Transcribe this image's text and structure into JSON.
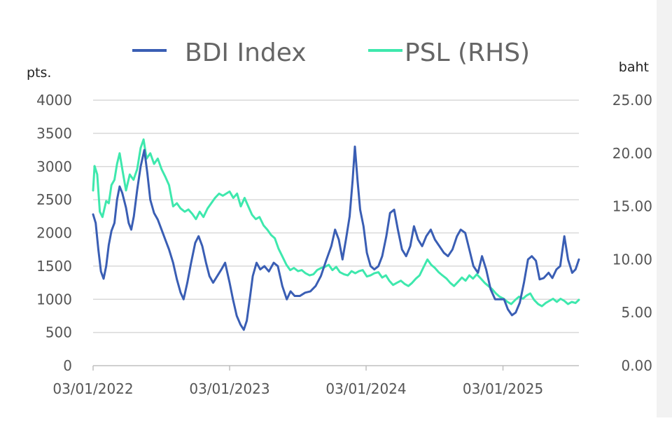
{
  "chart_data": {
    "type": "line",
    "x_ticks": [
      "03/01/2022",
      "03/01/2023",
      "03/01/2024",
      "03/01/2025"
    ],
    "x_range": [
      "2022-01-03",
      "2025-07-25"
    ],
    "left_axis": {
      "unit": "pts.",
      "ylim": [
        0,
        4000
      ],
      "ticks": [
        "0",
        "500",
        "1000",
        "1500",
        "2000",
        "2500",
        "3000",
        "3500",
        "4000"
      ]
    },
    "right_axis": {
      "unit": "baht",
      "ylim": [
        0,
        25
      ],
      "ticks": [
        "0.00",
        "5.00",
        "10.00",
        "15.00",
        "20.00",
        "25.00"
      ]
    },
    "grid": "horizontal",
    "legend_position": "top",
    "series": [
      {
        "name": "BDI Index",
        "axis": "left",
        "color": "#3a5eb4",
        "points": [
          [
            "2022-01-03",
            2280
          ],
          [
            "2022-01-10",
            2150
          ],
          [
            "2022-01-17",
            1750
          ],
          [
            "2022-01-24",
            1420
          ],
          [
            "2022-01-31",
            1310
          ],
          [
            "2022-02-07",
            1500
          ],
          [
            "2022-02-14",
            1820
          ],
          [
            "2022-02-21",
            2030
          ],
          [
            "2022-03-01",
            2150
          ],
          [
            "2022-03-08",
            2500
          ],
          [
            "2022-03-15",
            2700
          ],
          [
            "2022-03-22",
            2600
          ],
          [
            "2022-04-01",
            2380
          ],
          [
            "2022-04-08",
            2150
          ],
          [
            "2022-04-15",
            2050
          ],
          [
            "2022-04-22",
            2250
          ],
          [
            "2022-05-01",
            2650
          ],
          [
            "2022-05-10",
            3000
          ],
          [
            "2022-05-20",
            3250
          ],
          [
            "2022-05-28",
            2900
          ],
          [
            "2022-06-05",
            2500
          ],
          [
            "2022-06-15",
            2300
          ],
          [
            "2022-06-25",
            2200
          ],
          [
            "2022-07-05",
            2050
          ],
          [
            "2022-07-15",
            1900
          ],
          [
            "2022-07-25",
            1750
          ],
          [
            "2022-08-05",
            1550
          ],
          [
            "2022-08-15",
            1300
          ],
          [
            "2022-08-25",
            1100
          ],
          [
            "2022-09-02",
            1000
          ],
          [
            "2022-09-12",
            1250
          ],
          [
            "2022-09-22",
            1550
          ],
          [
            "2022-10-03",
            1850
          ],
          [
            "2022-10-12",
            1950
          ],
          [
            "2022-10-22",
            1800
          ],
          [
            "2022-11-01",
            1550
          ],
          [
            "2022-11-10",
            1350
          ],
          [
            "2022-11-20",
            1250
          ],
          [
            "2022-12-01",
            1350
          ],
          [
            "2022-12-12",
            1450
          ],
          [
            "2022-12-22",
            1550
          ],
          [
            "2023-01-03",
            1250
          ],
          [
            "2023-01-12",
            1000
          ],
          [
            "2023-01-22",
            750
          ],
          [
            "2023-02-01",
            620
          ],
          [
            "2023-02-10",
            540
          ],
          [
            "2023-02-18",
            680
          ],
          [
            "2023-02-27",
            1050
          ],
          [
            "2023-03-06",
            1350
          ],
          [
            "2023-03-16",
            1550
          ],
          [
            "2023-03-26",
            1450
          ],
          [
            "2023-04-06",
            1500
          ],
          [
            "2023-04-18",
            1420
          ],
          [
            "2023-05-01",
            1550
          ],
          [
            "2023-05-12",
            1500
          ],
          [
            "2023-05-24",
            1200
          ],
          [
            "2023-06-05",
            1000
          ],
          [
            "2023-06-15",
            1120
          ],
          [
            "2023-06-26",
            1050
          ],
          [
            "2023-07-10",
            1050
          ],
          [
            "2023-07-24",
            1100
          ],
          [
            "2023-08-07",
            1120
          ],
          [
            "2023-08-21",
            1200
          ],
          [
            "2023-09-04",
            1350
          ],
          [
            "2023-09-18",
            1580
          ],
          [
            "2023-10-02",
            1800
          ],
          [
            "2023-10-12",
            2050
          ],
          [
            "2023-10-22",
            1900
          ],
          [
            "2023-11-01",
            1600
          ],
          [
            "2023-11-10",
            1900
          ],
          [
            "2023-11-20",
            2250
          ],
          [
            "2023-11-28",
            2800
          ],
          [
            "2023-12-04",
            3300
          ],
          [
            "2023-12-11",
            2800
          ],
          [
            "2023-12-18",
            2350
          ],
          [
            "2023-12-27",
            2100
          ],
          [
            "2024-01-05",
            1700
          ],
          [
            "2024-01-15",
            1500
          ],
          [
            "2024-01-25",
            1450
          ],
          [
            "2024-02-05",
            1500
          ],
          [
            "2024-02-15",
            1650
          ],
          [
            "2024-02-26",
            1950
          ],
          [
            "2024-03-07",
            2300
          ],
          [
            "2024-03-18",
            2350
          ],
          [
            "2024-03-28",
            2050
          ],
          [
            "2024-04-08",
            1750
          ],
          [
            "2024-04-19",
            1650
          ],
          [
            "2024-04-30",
            1800
          ],
          [
            "2024-05-10",
            2100
          ],
          [
            "2024-05-21",
            1900
          ],
          [
            "2024-06-01",
            1800
          ],
          [
            "2024-06-12",
            1950
          ],
          [
            "2024-06-24",
            2050
          ],
          [
            "2024-07-05",
            1900
          ],
          [
            "2024-07-17",
            1800
          ],
          [
            "2024-07-29",
            1700
          ],
          [
            "2024-08-09",
            1650
          ],
          [
            "2024-08-21",
            1750
          ],
          [
            "2024-09-02",
            1950
          ],
          [
            "2024-09-12",
            2050
          ],
          [
            "2024-09-24",
            2000
          ],
          [
            "2024-10-05",
            1750
          ],
          [
            "2024-10-16",
            1500
          ],
          [
            "2024-10-28",
            1400
          ],
          [
            "2024-11-08",
            1650
          ],
          [
            "2024-11-19",
            1450
          ],
          [
            "2024-12-01",
            1150
          ],
          [
            "2024-12-13",
            1000
          ],
          [
            "2024-12-25",
            1000
          ],
          [
            "2025-01-06",
            1000
          ],
          [
            "2025-01-16",
            850
          ],
          [
            "2025-01-27",
            760
          ],
          [
            "2025-02-06",
            800
          ],
          [
            "2025-02-17",
            950
          ],
          [
            "2025-02-28",
            1250
          ],
          [
            "2025-03-11",
            1600
          ],
          [
            "2025-03-21",
            1650
          ],
          [
            "2025-04-01",
            1580
          ],
          [
            "2025-04-11",
            1300
          ],
          [
            "2025-04-22",
            1320
          ],
          [
            "2025-05-05",
            1400
          ],
          [
            "2025-05-15",
            1320
          ],
          [
            "2025-05-26",
            1450
          ],
          [
            "2025-06-05",
            1500
          ],
          [
            "2025-06-16",
            1950
          ],
          [
            "2025-06-26",
            1600
          ],
          [
            "2025-07-07",
            1400
          ],
          [
            "2025-07-16",
            1450
          ],
          [
            "2025-07-25",
            1600
          ]
        ]
      },
      {
        "name": "PSL (RHS)",
        "axis": "right",
        "color": "#3ee8ad",
        "points": [
          [
            "2022-01-03",
            16.5
          ],
          [
            "2022-01-07",
            18.8
          ],
          [
            "2022-01-14",
            18.0
          ],
          [
            "2022-01-21",
            14.5
          ],
          [
            "2022-01-28",
            14.0
          ],
          [
            "2022-02-07",
            15.5
          ],
          [
            "2022-02-14",
            15.3
          ],
          [
            "2022-02-21",
            17.0
          ],
          [
            "2022-03-01",
            17.5
          ],
          [
            "2022-03-08",
            19.0
          ],
          [
            "2022-03-15",
            20.0
          ],
          [
            "2022-03-22",
            18.5
          ],
          [
            "2022-04-01",
            16.5
          ],
          [
            "2022-04-11",
            18.0
          ],
          [
            "2022-04-21",
            17.5
          ],
          [
            "2022-05-01",
            18.5
          ],
          [
            "2022-05-10",
            20.5
          ],
          [
            "2022-05-18",
            21.3
          ],
          [
            "2022-05-26",
            19.5
          ],
          [
            "2022-06-05",
            20.0
          ],
          [
            "2022-06-15",
            19.0
          ],
          [
            "2022-06-25",
            19.5
          ],
          [
            "2022-07-05",
            18.5
          ],
          [
            "2022-07-15",
            17.8
          ],
          [
            "2022-07-25",
            17.0
          ],
          [
            "2022-08-05",
            15.0
          ],
          [
            "2022-08-15",
            15.3
          ],
          [
            "2022-08-25",
            14.8
          ],
          [
            "2022-09-05",
            14.5
          ],
          [
            "2022-09-15",
            14.7
          ],
          [
            "2022-09-25",
            14.3
          ],
          [
            "2022-10-05",
            13.8
          ],
          [
            "2022-10-15",
            14.5
          ],
          [
            "2022-10-25",
            14.0
          ],
          [
            "2022-11-05",
            14.8
          ],
          [
            "2022-11-15",
            15.3
          ],
          [
            "2022-11-25",
            15.8
          ],
          [
            "2022-12-06",
            16.2
          ],
          [
            "2022-12-16",
            16.0
          ],
          [
            "2023-01-03",
            16.4
          ],
          [
            "2023-01-13",
            15.8
          ],
          [
            "2023-01-23",
            16.2
          ],
          [
            "2023-02-02",
            15.0
          ],
          [
            "2023-02-12",
            15.8
          ],
          [
            "2023-02-22",
            15.0
          ],
          [
            "2023-03-04",
            14.2
          ],
          [
            "2023-03-14",
            13.8
          ],
          [
            "2023-03-24",
            14.0
          ],
          [
            "2023-04-04",
            13.2
          ],
          [
            "2023-04-14",
            12.8
          ],
          [
            "2023-04-24",
            12.3
          ],
          [
            "2023-05-04",
            12.0
          ],
          [
            "2023-05-14",
            11.0
          ],
          [
            "2023-05-24",
            10.3
          ],
          [
            "2023-06-04",
            9.5
          ],
          [
            "2023-06-14",
            9.0
          ],
          [
            "2023-06-24",
            9.2
          ],
          [
            "2023-07-05",
            8.9
          ],
          [
            "2023-07-15",
            9.0
          ],
          [
            "2023-07-25",
            8.7
          ],
          [
            "2023-08-05",
            8.5
          ],
          [
            "2023-08-15",
            8.6
          ],
          [
            "2023-08-25",
            9.0
          ],
          [
            "2023-09-05",
            9.2
          ],
          [
            "2023-09-15",
            9.3
          ],
          [
            "2023-09-25",
            9.5
          ],
          [
            "2023-10-05",
            9.0
          ],
          [
            "2023-10-15",
            9.3
          ],
          [
            "2023-10-25",
            8.8
          ],
          [
            "2023-11-05",
            8.6
          ],
          [
            "2023-11-15",
            8.5
          ],
          [
            "2023-11-25",
            8.9
          ],
          [
            "2023-12-05",
            8.7
          ],
          [
            "2023-12-15",
            8.9
          ],
          [
            "2023-12-25",
            9.0
          ],
          [
            "2024-01-05",
            8.4
          ],
          [
            "2024-01-15",
            8.5
          ],
          [
            "2024-01-25",
            8.7
          ],
          [
            "2024-02-05",
            8.8
          ],
          [
            "2024-02-15",
            8.3
          ],
          [
            "2024-02-25",
            8.5
          ],
          [
            "2024-03-05",
            8.0
          ],
          [
            "2024-03-15",
            7.6
          ],
          [
            "2024-03-25",
            7.8
          ],
          [
            "2024-04-05",
            8.0
          ],
          [
            "2024-04-15",
            7.7
          ],
          [
            "2024-04-25",
            7.5
          ],
          [
            "2024-05-05",
            7.8
          ],
          [
            "2024-05-15",
            8.2
          ],
          [
            "2024-05-25",
            8.5
          ],
          [
            "2024-06-05",
            9.3
          ],
          [
            "2024-06-15",
            10.0
          ],
          [
            "2024-06-25",
            9.5
          ],
          [
            "2024-07-05",
            9.2
          ],
          [
            "2024-07-15",
            8.8
          ],
          [
            "2024-07-25",
            8.5
          ],
          [
            "2024-08-05",
            8.2
          ],
          [
            "2024-08-15",
            7.8
          ],
          [
            "2024-08-25",
            7.5
          ],
          [
            "2024-09-05",
            7.9
          ],
          [
            "2024-09-15",
            8.3
          ],
          [
            "2024-09-25",
            8.0
          ],
          [
            "2024-10-05",
            8.5
          ],
          [
            "2024-10-15",
            8.2
          ],
          [
            "2024-10-25",
            8.6
          ],
          [
            "2024-11-05",
            8.2
          ],
          [
            "2024-11-15",
            7.8
          ],
          [
            "2024-11-25",
            7.5
          ],
          [
            "2024-12-05",
            7.2
          ],
          [
            "2024-12-15",
            6.8
          ],
          [
            "2024-12-25",
            6.5
          ],
          [
            "2025-01-05",
            6.3
          ],
          [
            "2025-01-15",
            6.0
          ],
          [
            "2025-01-25",
            5.8
          ],
          [
            "2025-02-05",
            6.2
          ],
          [
            "2025-02-15",
            6.5
          ],
          [
            "2025-02-25",
            6.3
          ],
          [
            "2025-03-07",
            6.6
          ],
          [
            "2025-03-17",
            6.8
          ],
          [
            "2025-03-27",
            6.2
          ],
          [
            "2025-04-07",
            5.8
          ],
          [
            "2025-04-17",
            5.6
          ],
          [
            "2025-04-27",
            5.9
          ],
          [
            "2025-05-07",
            6.1
          ],
          [
            "2025-05-17",
            6.3
          ],
          [
            "2025-05-27",
            6.0
          ],
          [
            "2025-06-06",
            6.3
          ],
          [
            "2025-06-16",
            6.1
          ],
          [
            "2025-06-26",
            5.8
          ],
          [
            "2025-07-06",
            6.0
          ],
          [
            "2025-07-16",
            5.9
          ],
          [
            "2025-07-25",
            6.2
          ]
        ]
      }
    ]
  }
}
